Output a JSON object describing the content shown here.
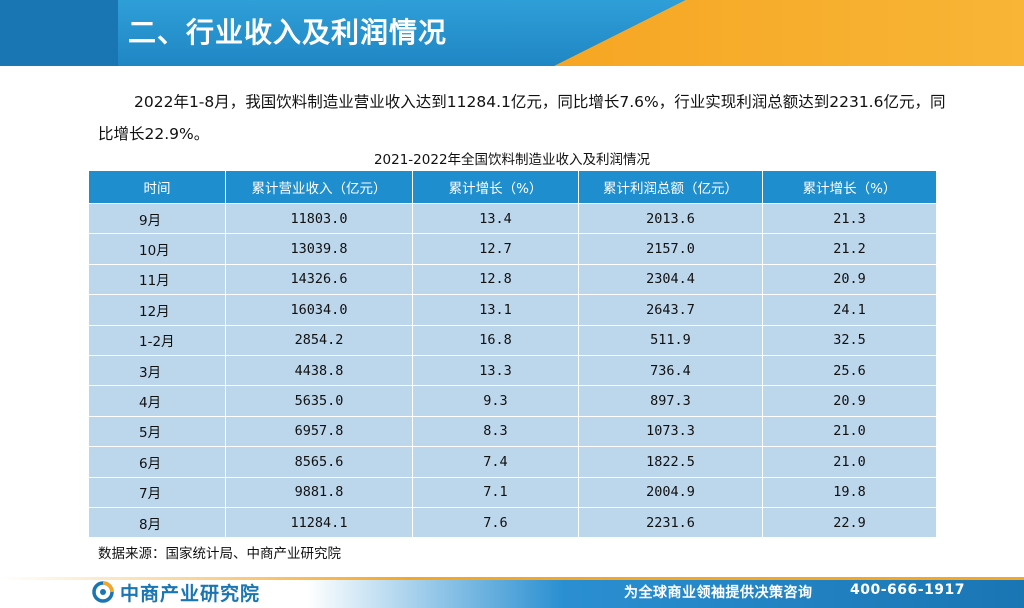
{
  "header": {
    "title": "二、行业收入及利润情况"
  },
  "paragraph": "2022年1-8月，我国饮料制造业营业收入达到11284.1亿元，同比增长7.6%，行业实现利润总额达到2231.6亿元，同比增长22.9%。",
  "table": {
    "caption": "2021-2022年全国饮料制造业收入及利润情况",
    "headers": [
      "时间",
      "累计营业收入（亿元）",
      "累计增长（%）",
      "累计利润总额（亿元）",
      "累计增长（%）"
    ],
    "rows": [
      [
        "9月",
        "11803.0",
        "13.4",
        "2013.6",
        "21.3"
      ],
      [
        "10月",
        "13039.8",
        "12.7",
        "2157.0",
        "21.2"
      ],
      [
        "11月",
        "14326.6",
        "12.8",
        "2304.4",
        "20.9"
      ],
      [
        "12月",
        "16034.0",
        "13.1",
        "2643.7",
        "24.1"
      ],
      [
        "1-2月",
        "2854.2",
        "16.8",
        "511.9",
        "32.5"
      ],
      [
        "3月",
        "4438.8",
        "13.3",
        "736.4",
        "25.6"
      ],
      [
        "4月",
        "5635.0",
        "9.3",
        "897.3",
        "20.9"
      ],
      [
        "5月",
        "6957.8",
        "8.3",
        "1073.3",
        "21.0"
      ],
      [
        "6月",
        "8565.6",
        "7.4",
        "1822.5",
        "21.0"
      ],
      [
        "7月",
        "9881.8",
        "7.1",
        "2004.9",
        "19.8"
      ],
      [
        "8月",
        "11284.1",
        "7.6",
        "2231.6",
        "22.9"
      ]
    ]
  },
  "source": "数据来源：国家统计局、中商产业研究院",
  "footer": {
    "logo_text": "中商产业研究院",
    "slogan": "为全球商业领袖提供决策咨询",
    "phone": "400-666-1917"
  },
  "colors": {
    "header_blue": "#1f86c4",
    "accent_orange": "#f6a623",
    "table_header": "#1f8ece",
    "table_cell": "#bcd6ec"
  }
}
